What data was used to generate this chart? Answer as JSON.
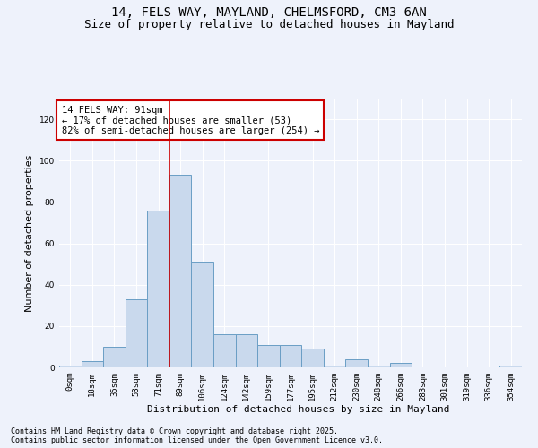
{
  "title_line1": "14, FELS WAY, MAYLAND, CHELMSFORD, CM3 6AN",
  "title_line2": "Size of property relative to detached houses in Mayland",
  "xlabel": "Distribution of detached houses by size in Mayland",
  "ylabel": "Number of detached properties",
  "annotation_title": "14 FELS WAY: 91sqm",
  "annotation_line2": "← 17% of detached houses are smaller (53)",
  "annotation_line3": "82% of semi-detached houses are larger (254) →",
  "footnote1": "Contains HM Land Registry data © Crown copyright and database right 2025.",
  "footnote2": "Contains public sector information licensed under the Open Government Licence v3.0.",
  "bin_labels": [
    "0sqm",
    "18sqm",
    "35sqm",
    "53sqm",
    "71sqm",
    "89sqm",
    "106sqm",
    "124sqm",
    "142sqm",
    "159sqm",
    "177sqm",
    "195sqm",
    "212sqm",
    "230sqm",
    "248sqm",
    "266sqm",
    "283sqm",
    "301sqm",
    "319sqm",
    "336sqm",
    "354sqm"
  ],
  "bar_heights": [
    1,
    3,
    10,
    33,
    76,
    93,
    51,
    16,
    16,
    11,
    11,
    9,
    1,
    4,
    1,
    2,
    0,
    0,
    0,
    0,
    1
  ],
  "bar_color": "#c9d9ed",
  "bar_edge_color": "#6a9ec5",
  "red_line_x": 4.5,
  "ylim": [
    0,
    130
  ],
  "yticks": [
    0,
    20,
    40,
    60,
    80,
    100,
    120
  ],
  "background_color": "#eef2fb",
  "grid_color": "#ffffff",
  "annotation_box_color": "#ffffff",
  "annotation_box_edge": "#cc0000",
  "red_line_color": "#cc0000",
  "title_fontsize": 10,
  "subtitle_fontsize": 9,
  "axis_label_fontsize": 8,
  "tick_fontsize": 6.5,
  "annotation_fontsize": 7.5,
  "footnote_fontsize": 6
}
